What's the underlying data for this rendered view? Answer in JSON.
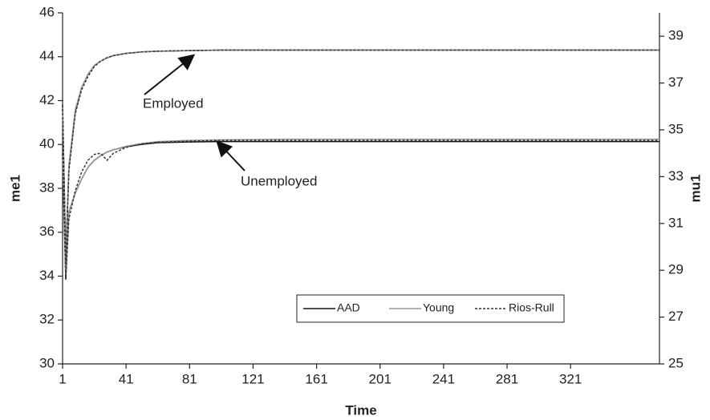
{
  "chart_data": {
    "type": "line",
    "x_label": "Time",
    "y_label": "me1",
    "y2_label": "mu1",
    "x": [
      1,
      3,
      5,
      9,
      13,
      17,
      21,
      25,
      29,
      33,
      41,
      51,
      61,
      81,
      101,
      141,
      181,
      241,
      301,
      377
    ],
    "xlim": [
      1,
      377
    ],
    "xticks": [
      1,
      41,
      81,
      121,
      161,
      201,
      241,
      281,
      321
    ],
    "ylim": [
      30,
      46
    ],
    "yticks": [
      30,
      32,
      34,
      36,
      38,
      40,
      42,
      44,
      46
    ],
    "y2lim": [
      25,
      40
    ],
    "y2ticks": [
      25,
      27,
      29,
      31,
      33,
      35,
      37,
      39
    ],
    "series": [
      {
        "name": "AAD",
        "color": "#111111",
        "dash": "none",
        "values": [
          41.8,
          34.8,
          39.0,
          41.5,
          42.6,
          43.2,
          43.6,
          43.8,
          43.95,
          44.05,
          44.15,
          44.22,
          44.25,
          44.28,
          44.3,
          44.3,
          44.3,
          44.3,
          44.3,
          44.3
        ],
        "y2_values": [
          34.0,
          28.6,
          31.5,
          32.3,
          32.9,
          33.4,
          33.7,
          33.9,
          34.05,
          34.15,
          34.28,
          34.38,
          34.45,
          34.48,
          34.5,
          34.5,
          34.5,
          34.5,
          34.5,
          34.5
        ]
      },
      {
        "name": "Young",
        "color": "#999999",
        "dash": "none",
        "values": [
          41.8,
          34.8,
          39.1,
          41.6,
          42.6,
          43.2,
          43.6,
          43.8,
          43.95,
          44.05,
          44.15,
          44.22,
          44.25,
          44.28,
          44.3,
          44.3,
          44.3,
          44.3,
          44.3,
          44.3
        ],
        "y2_values": [
          34.0,
          28.8,
          31.5,
          32.3,
          32.9,
          33.4,
          33.7,
          33.9,
          34.05,
          34.15,
          34.3,
          34.42,
          34.5,
          34.55,
          34.57,
          34.6,
          34.6,
          34.6,
          34.6,
          34.6
        ]
      },
      {
        "name": "Rios-Rull",
        "color": "#333333",
        "dash": "3,2",
        "values": [
          41.8,
          34.6,
          38.8,
          41.4,
          42.5,
          43.1,
          43.55,
          43.8,
          43.95,
          44.05,
          44.15,
          44.22,
          44.25,
          44.28,
          44.3,
          44.3,
          44.3,
          44.3,
          44.3,
          44.3
        ],
        "y2_values": [
          34.0,
          28.7,
          31.2,
          32.4,
          33.2,
          33.7,
          33.95,
          34.0,
          33.7,
          34.0,
          34.25,
          34.4,
          34.47,
          34.52,
          34.55,
          34.55,
          34.55,
          34.55,
          34.55,
          34.55
        ]
      }
    ],
    "annotations": [
      {
        "text": "Employed"
      },
      {
        "text": "Unemployed"
      }
    ]
  }
}
